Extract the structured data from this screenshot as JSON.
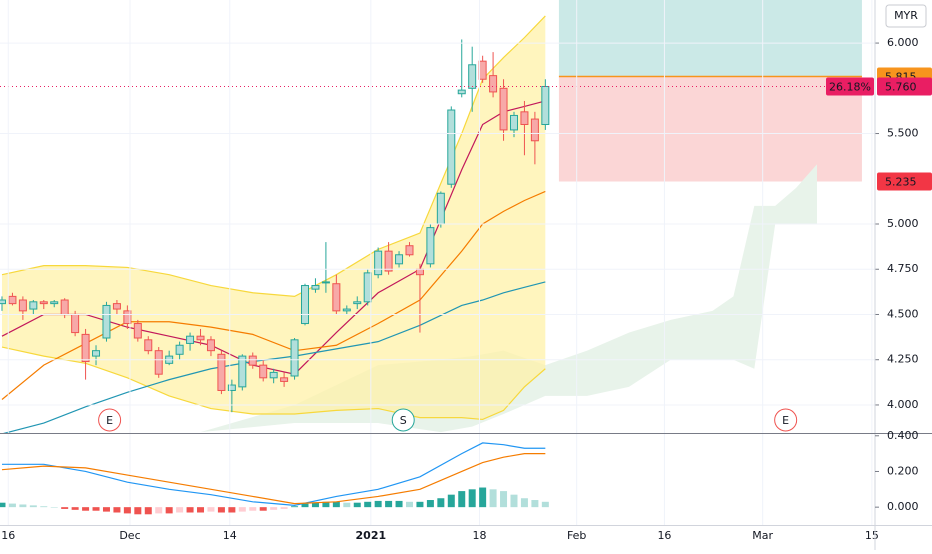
{
  "chart_data": {
    "type": "candlestick",
    "currency": "MYR",
    "x": [
      0,
      1,
      2,
      3,
      4,
      5,
      6,
      7,
      8,
      9,
      10,
      11,
      12,
      13,
      14,
      15,
      16,
      17,
      18,
      19,
      20,
      21,
      22,
      23,
      24,
      25,
      26,
      27,
      28,
      29,
      30,
      31,
      32,
      33,
      34,
      35,
      36,
      37,
      38,
      39,
      40,
      41,
      42,
      43,
      44,
      45,
      46,
      47,
      48,
      49,
      50,
      51,
      52
    ],
    "open": [
      4.56,
      4.6,
      4.58,
      4.53,
      4.57,
      4.56,
      4.58,
      4.5,
      4.39,
      4.27,
      4.37,
      4.56,
      4.52,
      4.45,
      4.36,
      4.3,
      4.23,
      4.28,
      4.34,
      4.38,
      4.36,
      4.28,
      4.08,
      4.1,
      4.27,
      4.22,
      4.15,
      4.15,
      4.16,
      4.45,
      4.64,
      4.68,
      4.67,
      4.52,
      4.56,
      4.57,
      4.72,
      4.85,
      4.78,
      4.88,
      4.75,
      4.78,
      5.0,
      5.22,
      5.72,
      5.75,
      5.9,
      5.82,
      5.75,
      5.52,
      5.62,
      5.58,
      5.55
    ],
    "high": [
      4.6,
      4.62,
      4.6,
      4.58,
      4.58,
      4.58,
      4.59,
      4.52,
      4.42,
      4.33,
      4.57,
      4.58,
      4.55,
      4.47,
      4.38,
      4.32,
      4.3,
      4.35,
      4.4,
      4.42,
      4.38,
      4.3,
      4.14,
      4.28,
      4.29,
      4.25,
      4.2,
      4.18,
      4.37,
      4.67,
      4.7,
      4.9,
      4.72,
      4.55,
      4.6,
      4.75,
      4.87,
      4.9,
      4.85,
      4.9,
      4.78,
      5.0,
      5.18,
      5.65,
      6.02,
      5.98,
      5.93,
      5.95,
      5.8,
      5.62,
      5.68,
      5.62,
      5.8
    ],
    "low": [
      4.52,
      4.55,
      4.47,
      4.5,
      4.53,
      4.54,
      4.48,
      4.38,
      4.14,
      4.22,
      4.35,
      4.5,
      4.42,
      4.35,
      4.28,
      4.15,
      4.22,
      4.25,
      4.3,
      4.33,
      4.27,
      4.06,
      3.96,
      4.08,
      4.2,
      4.13,
      4.12,
      4.1,
      4.14,
      4.44,
      4.62,
      4.62,
      4.5,
      4.5,
      4.53,
      4.55,
      4.7,
      4.72,
      4.76,
      4.82,
      4.4,
      4.76,
      4.98,
      5.2,
      5.7,
      5.62,
      5.78,
      5.7,
      5.46,
      5.48,
      5.38,
      5.33,
      5.52
    ],
    "close": [
      4.58,
      4.56,
      4.52,
      4.57,
      4.56,
      4.57,
      4.5,
      4.4,
      4.24,
      4.3,
      4.55,
      4.53,
      4.45,
      4.37,
      4.3,
      4.17,
      4.27,
      4.33,
      4.38,
      4.36,
      4.3,
      4.08,
      4.11,
      4.27,
      4.22,
      4.15,
      4.18,
      4.13,
      4.36,
      4.66,
      4.66,
      4.68,
      4.52,
      4.53,
      4.57,
      4.73,
      4.85,
      4.74,
      4.83,
      4.83,
      4.72,
      4.98,
      5.17,
      5.63,
      5.74,
      5.88,
      5.8,
      5.73,
      5.52,
      5.6,
      5.55,
      5.46,
      5.76
    ],
    "up_color": "#26a69a",
    "up_fill": "#b2dfdb",
    "down_color": "#ef5350",
    "down_fill": "#f7a9a8",
    "xlim": [
      -0.19,
      83.55
    ],
    "xticks": [
      {
        "value": 0.6,
        "label": "16"
      },
      {
        "value": 12.25,
        "label": "Dec"
      },
      {
        "value": 21.8,
        "label": "14"
      },
      {
        "value": 35.3,
        "label": "2021"
      },
      {
        "value": 45.7,
        "label": "18"
      },
      {
        "value": 55.0,
        "label": "Feb"
      },
      {
        "value": 63.4,
        "label": "16"
      },
      {
        "value": 72.8,
        "label": "Mar"
      },
      {
        "value": 83.25,
        "label": "15"
      }
    ],
    "ylim": [
      3.845,
      6.238
    ],
    "yticks": [
      {
        "value": 6,
        "label": "6.000"
      },
      {
        "value": 5.5,
        "label": "5.500"
      },
      {
        "value": 5,
        "label": "5.000"
      },
      {
        "value": 4.75,
        "label": "4.750"
      },
      {
        "value": 4.5,
        "label": "4.500"
      },
      {
        "value": 4.25,
        "label": "4.250"
      },
      {
        "value": 4,
        "label": "4.000"
      }
    ],
    "cloud": {
      "x": [
        19,
        28,
        36,
        42,
        45,
        48,
        52,
        56,
        60,
        64,
        68,
        70,
        72,
        74,
        76,
        78
      ],
      "upper": [
        3.85,
        4.0,
        4.22,
        4.25,
        4.27,
        4.3,
        4.22,
        4.3,
        4.4,
        4.47,
        4.52,
        4.6,
        5.1,
        5.1,
        5.2,
        5.33
      ],
      "lower": [
        3.85,
        3.9,
        3.9,
        3.85,
        3.88,
        3.95,
        4.05,
        4.05,
        4.1,
        4.25,
        4.25,
        4.25,
        4.2,
        5.0,
        5.0,
        5.0
      ],
      "color": "#e8f3ea"
    },
    "bands": {
      "x": [
        0,
        4,
        8,
        12,
        16,
        20,
        24,
        28,
        32,
        36,
        40,
        44,
        46,
        48,
        50,
        52
      ],
      "upper": [
        4.72,
        4.77,
        4.77,
        4.76,
        4.72,
        4.66,
        4.62,
        4.6,
        4.72,
        4.86,
        4.95,
        5.5,
        5.8,
        5.92,
        6.03,
        6.15
      ],
      "lower": [
        4.32,
        4.27,
        4.23,
        4.15,
        4.05,
        3.98,
        3.95,
        3.95,
        3.97,
        3.98,
        3.93,
        3.93,
        3.92,
        3.97,
        4.1,
        4.2
      ],
      "color": "#fff2a8",
      "line_color": "#f7d83c"
    },
    "overlays": [
      {
        "x": [
          0,
          4,
          8,
          12,
          16,
          20,
          24,
          28,
          32,
          36,
          40,
          44,
          46,
          48,
          50,
          52
        ],
        "values": [
          4.38,
          4.5,
          4.5,
          4.43,
          4.38,
          4.33,
          4.22,
          4.17,
          4.4,
          4.62,
          4.75,
          5.3,
          5.55,
          5.62,
          5.65,
          5.68
        ],
        "color": "#c2185b"
      },
      {
        "x": [
          0,
          4,
          8,
          12,
          16,
          20,
          24,
          28,
          32,
          36,
          40,
          44,
          46,
          48,
          50,
          52
        ],
        "values": [
          4.03,
          4.22,
          4.34,
          4.46,
          4.46,
          4.43,
          4.39,
          4.3,
          4.33,
          4.45,
          4.58,
          4.85,
          5.0,
          5.07,
          5.13,
          5.18
        ],
        "color": "#f57c00"
      },
      {
        "x": [
          0,
          4,
          8,
          12,
          16,
          20,
          24,
          28,
          32,
          36,
          40,
          44,
          46,
          48,
          50,
          52
        ],
        "values": [
          3.84,
          3.9,
          3.99,
          4.07,
          4.14,
          4.2,
          4.24,
          4.27,
          4.31,
          4.35,
          4.44,
          4.55,
          4.58,
          4.62,
          4.65,
          4.68
        ],
        "color": "#2196b3"
      }
    ],
    "position": {
      "x": [
        53.3,
        82.3
      ],
      "entry": {
        "value": 5.815,
        "label": "5.815"
      },
      "stop": {
        "value": 5.235,
        "label": "5.235"
      },
      "profit_color": "#cbe9e7",
      "loss_color": "#fbd6d6",
      "entry_color": "#f7941d",
      "stop_color": "#f23645"
    },
    "last_price": {
      "value": 5.76,
      "label": "5.760",
      "change": "26.18%",
      "color": "#e91e63"
    },
    "events": [
      {
        "x": 10.3,
        "label": "E",
        "color": "#ef5350"
      },
      {
        "x": 38.4,
        "label": "S",
        "color": "#26a69a"
      },
      {
        "x": 75.0,
        "label": "E",
        "color": "#ef5350"
      }
    ],
    "macd": {
      "ylim": [
        -0.1,
        0.41
      ],
      "yticks": [
        {
          "value": 0.4,
          "label": "0.400"
        },
        {
          "value": 0.2,
          "label": "0.200"
        },
        {
          "value": 0,
          "label": "0.000"
        }
      ],
      "histogram": [
        0.025,
        0.02,
        0.015,
        0.01,
        0.005,
        0.0,
        -0.01,
        -0.015,
        -0.02,
        -0.02,
        -0.025,
        -0.03,
        -0.035,
        -0.04,
        -0.04,
        -0.035,
        -0.035,
        -0.03,
        -0.03,
        -0.03,
        -0.025,
        -0.03,
        -0.03,
        -0.025,
        -0.02,
        -0.02,
        -0.015,
        -0.01,
        0.005,
        0.02,
        0.025,
        0.03,
        0.03,
        0.025,
        0.025,
        0.03,
        0.035,
        0.035,
        0.035,
        0.03,
        0.03,
        0.04,
        0.05,
        0.07,
        0.09,
        0.1,
        0.11,
        0.1,
        0.09,
        0.07,
        0.05,
        0.04,
        0.03
      ],
      "hist_colors": {
        "pos_up": "#26a69a",
        "pos_down": "#b2dfdb",
        "neg_down": "#ef5350",
        "neg_up": "#ffcdd2"
      },
      "macd": {
        "x": [
          0,
          4,
          8,
          12,
          16,
          20,
          24,
          28,
          32,
          36,
          40,
          44,
          46,
          48,
          50,
          52
        ],
        "values": [
          0.24,
          0.24,
          0.2,
          0.14,
          0.1,
          0.07,
          0.03,
          0.01,
          0.06,
          0.1,
          0.17,
          0.3,
          0.36,
          0.35,
          0.33,
          0.33
        ],
        "color": "#2196f3"
      },
      "signal": {
        "x": [
          0,
          4,
          8,
          12,
          16,
          20,
          24,
          28,
          32,
          36,
          40,
          44,
          46,
          48,
          50,
          52
        ],
        "values": [
          0.21,
          0.23,
          0.22,
          0.18,
          0.14,
          0.1,
          0.06,
          0.02,
          0.03,
          0.06,
          0.1,
          0.2,
          0.25,
          0.28,
          0.3,
          0.3
        ],
        "color": "#f57c00"
      }
    }
  }
}
